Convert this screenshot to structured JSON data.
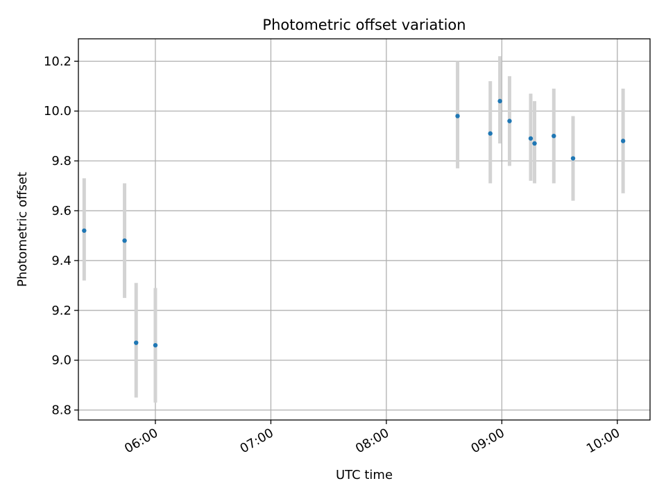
{
  "chart_data": {
    "type": "scatter",
    "title": "Photometric offset variation",
    "xlabel": "UTC time",
    "ylabel": "Photometric offset",
    "xlim": [
      "05:20",
      "10:17"
    ],
    "ylim": [
      8.76,
      10.29
    ],
    "x_ticks": [
      "06:00",
      "07:00",
      "08:00",
      "09:00",
      "10:00"
    ],
    "y_ticks": [
      8.8,
      9.0,
      9.2,
      9.4,
      9.6,
      9.8,
      10.0,
      10.2
    ],
    "y_tick_labels": [
      "8.8",
      "9.0",
      "9.2",
      "9.4",
      "9.6",
      "9.8",
      "10.0",
      "10.2"
    ],
    "grid": true,
    "marker_color": "#1f77b4",
    "errorbar_color": "#d3d3d3",
    "points": [
      {
        "x": "05:23",
        "y": 9.52,
        "ylow": 9.32,
        "yhigh": 9.73
      },
      {
        "x": "05:44",
        "y": 9.48,
        "ylow": 9.25,
        "yhigh": 9.71
      },
      {
        "x": "05:50",
        "y": 9.07,
        "ylow": 8.85,
        "yhigh": 9.31
      },
      {
        "x": "06:00",
        "y": 9.06,
        "ylow": 8.83,
        "yhigh": 9.29
      },
      {
        "x": "08:37",
        "y": 9.98,
        "ylow": 9.77,
        "yhigh": 10.2
      },
      {
        "x": "08:54",
        "y": 9.91,
        "ylow": 9.71,
        "yhigh": 10.12
      },
      {
        "x": "08:59",
        "y": 10.04,
        "ylow": 9.87,
        "yhigh": 10.22
      },
      {
        "x": "09:04",
        "y": 9.96,
        "ylow": 9.78,
        "yhigh": 10.14
      },
      {
        "x": "09:15",
        "y": 9.89,
        "ylow": 9.72,
        "yhigh": 10.07
      },
      {
        "x": "09:17",
        "y": 9.87,
        "ylow": 9.71,
        "yhigh": 10.04
      },
      {
        "x": "09:27",
        "y": 9.9,
        "ylow": 9.71,
        "yhigh": 10.09
      },
      {
        "x": "09:37",
        "y": 9.81,
        "ylow": 9.64,
        "yhigh": 9.98
      },
      {
        "x": "10:03",
        "y": 9.88,
        "ylow": 9.67,
        "yhigh": 10.09
      }
    ]
  }
}
